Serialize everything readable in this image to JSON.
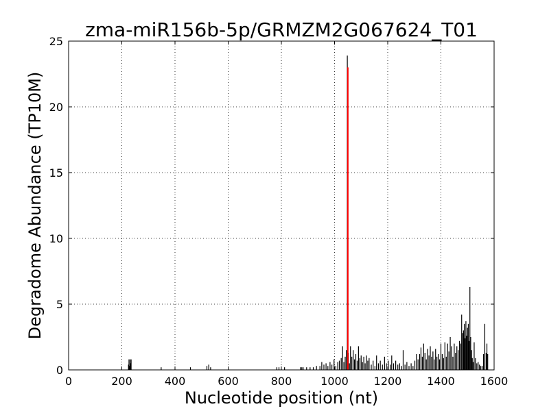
{
  "chart_data": {
    "type": "bar",
    "title": "zma-miR156b-5p/GRMZM2G067624_T01",
    "xlabel": "Nucleotide position (nt)",
    "ylabel": "Degradome Abundance (TP10M)",
    "xlim": [
      0,
      1600
    ],
    "ylim": [
      0,
      25
    ],
    "xticks": [
      0,
      200,
      400,
      600,
      800,
      1000,
      1200,
      1400,
      1600
    ],
    "yticks": [
      0,
      5,
      10,
      15,
      20,
      25
    ],
    "grid": true,
    "series": [
      {
        "color": "#000000",
        "points": [
          [
            225,
            0.4
          ],
          [
            227,
            0.8
          ],
          [
            229,
            0.3
          ],
          [
            231,
            0.8
          ],
          [
            233,
            0.5
          ],
          [
            235,
            0.8
          ],
          [
            348,
            0.2
          ],
          [
            458,
            0.2
          ],
          [
            520,
            0.3
          ],
          [
            527,
            0.4
          ],
          [
            534,
            0.2
          ],
          [
            783,
            0.2
          ],
          [
            791,
            0.2
          ],
          [
            812,
            0.2
          ],
          [
            872,
            0.2
          ],
          [
            877,
            0.2
          ],
          [
            882,
            0.2
          ],
          [
            895,
            0.2
          ],
          [
            908,
            0.2
          ],
          [
            920,
            0.2
          ],
          [
            932,
            0.3
          ],
          [
            945,
            0.3
          ],
          [
            952,
            0.6
          ],
          [
            960,
            0.4
          ],
          [
            968,
            0.5
          ],
          [
            975,
            0.3
          ],
          [
            983,
            0.6
          ],
          [
            990,
            0.4
          ],
          [
            998,
            0.8
          ],
          [
            1005,
            0.3
          ],
          [
            1012,
            0.6
          ],
          [
            1018,
            0.7
          ],
          [
            1025,
            0.9
          ],
          [
            1030,
            1.8
          ],
          [
            1035,
            0.6
          ],
          [
            1040,
            1.0
          ],
          [
            1045,
            1.5
          ],
          [
            1048,
            23.9
          ],
          [
            1052,
            1.3
          ],
          [
            1056,
            0.5
          ],
          [
            1060,
            1.8
          ],
          [
            1065,
            1.0
          ],
          [
            1070,
            1.5
          ],
          [
            1075,
            0.8
          ],
          [
            1080,
            1.2
          ],
          [
            1085,
            0.7
          ],
          [
            1090,
            1.8
          ],
          [
            1095,
            0.9
          ],
          [
            1100,
            1.1
          ],
          [
            1105,
            0.6
          ],
          [
            1110,
            1.0
          ],
          [
            1115,
            0.5
          ],
          [
            1120,
            1.1
          ],
          [
            1125,
            0.7
          ],
          [
            1130,
            0.9
          ],
          [
            1138,
            0.4
          ],
          [
            1145,
            0.7
          ],
          [
            1152,
            0.3
          ],
          [
            1158,
            1.1
          ],
          [
            1165,
            0.5
          ],
          [
            1172,
            0.7
          ],
          [
            1180,
            0.4
          ],
          [
            1188,
            1.0
          ],
          [
            1195,
            0.5
          ],
          [
            1202,
            0.7
          ],
          [
            1210,
            0.4
          ],
          [
            1215,
            1.1
          ],
          [
            1222,
            0.5
          ],
          [
            1230,
            0.7
          ],
          [
            1238,
            0.4
          ],
          [
            1245,
            0.5
          ],
          [
            1252,
            0.3
          ],
          [
            1258,
            1.5
          ],
          [
            1265,
            0.4
          ],
          [
            1272,
            0.6
          ],
          [
            1280,
            0.3
          ],
          [
            1288,
            0.5
          ],
          [
            1295,
            0.3
          ],
          [
            1302,
            0.7
          ],
          [
            1308,
            1.2
          ],
          [
            1314,
            0.8
          ],
          [
            1320,
            1.2
          ],
          [
            1325,
            1.7
          ],
          [
            1330,
            1.0
          ],
          [
            1335,
            2.0
          ],
          [
            1340,
            1.3
          ],
          [
            1345,
            0.8
          ],
          [
            1350,
            1.6
          ],
          [
            1355,
            1.1
          ],
          [
            1360,
            1.8
          ],
          [
            1365,
            1.0
          ],
          [
            1370,
            1.4
          ],
          [
            1375,
            0.8
          ],
          [
            1380,
            1.6
          ],
          [
            1385,
            1.0
          ],
          [
            1390,
            1.2
          ],
          [
            1395,
            0.8
          ],
          [
            1400,
            2.0
          ],
          [
            1405,
            1.2
          ],
          [
            1410,
            0.9
          ],
          [
            1415,
            2.1
          ],
          [
            1420,
            1.0
          ],
          [
            1425,
            2.0
          ],
          [
            1430,
            1.4
          ],
          [
            1435,
            2.5
          ],
          [
            1440,
            1.8
          ],
          [
            1445,
            1.0
          ],
          [
            1450,
            2.0
          ],
          [
            1455,
            1.3
          ],
          [
            1460,
            1.8
          ],
          [
            1465,
            1.5
          ],
          [
            1470,
            2.2
          ],
          [
            1475,
            2.0
          ],
          [
            1478,
            4.2
          ],
          [
            1482,
            2.8
          ],
          [
            1485,
            3.0
          ],
          [
            1488,
            3.5
          ],
          [
            1491,
            2.4
          ],
          [
            1494,
            3.7
          ],
          [
            1497,
            2.6
          ],
          [
            1500,
            3.2
          ],
          [
            1503,
            3.5
          ],
          [
            1506,
            2.2
          ],
          [
            1509,
            6.3
          ],
          [
            1512,
            2.5
          ],
          [
            1515,
            1.5
          ],
          [
            1518,
            0.9
          ],
          [
            1521,
            0.6
          ],
          [
            1525,
            2.1
          ],
          [
            1530,
            0.9
          ],
          [
            1535,
            0.5
          ],
          [
            1540,
            0.6
          ],
          [
            1545,
            0.4
          ],
          [
            1550,
            0.3
          ],
          [
            1555,
            0.3
          ],
          [
            1560,
            1.2
          ],
          [
            1565,
            3.5
          ],
          [
            1570,
            1.3
          ],
          [
            1573,
            2.0
          ],
          [
            1576,
            1.2
          ]
        ]
      },
      {
        "color": "#ff0000",
        "points": [
          [
            1050,
            23.0
          ]
        ]
      }
    ]
  }
}
